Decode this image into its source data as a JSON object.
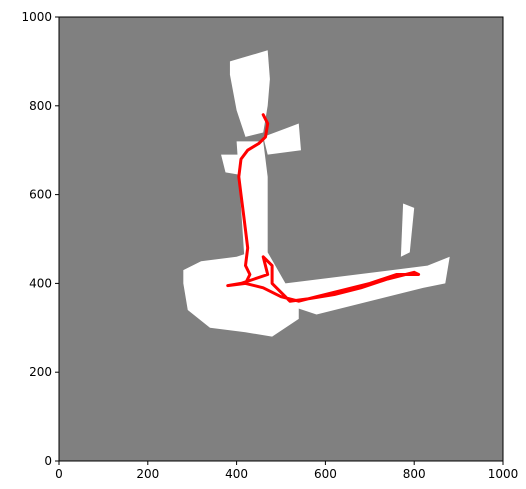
{
  "chart_data": {
    "type": "line",
    "color": "#ff0000",
    "x": [
      460,
      470,
      465,
      450,
      425,
      410,
      405,
      410,
      415,
      420,
      425,
      420,
      430,
      420,
      380,
      410,
      440,
      470,
      460,
      480,
      480,
      500,
      520,
      560,
      620,
      680,
      740,
      800,
      810,
      760,
      700,
      640,
      580,
      540,
      500,
      460,
      420
    ],
    "values": [
      780,
      760,
      730,
      715,
      700,
      680,
      640,
      600,
      560,
      520,
      480,
      440,
      420,
      400,
      395,
      400,
      410,
      420,
      460,
      440,
      400,
      380,
      360,
      365,
      375,
      390,
      410,
      425,
      420,
      420,
      400,
      385,
      370,
      360,
      370,
      390,
      400
    ],
    "xlim": [
      0,
      1000
    ],
    "ylim": [
      0,
      1000
    ],
    "xticks": [
      0,
      200,
      400,
      600,
      800,
      1000
    ],
    "yticks": [
      0,
      200,
      400,
      600,
      800,
      1000
    ]
  }
}
